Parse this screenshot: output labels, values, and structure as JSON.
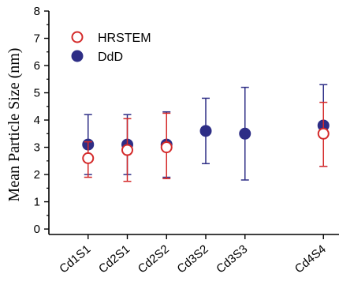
{
  "chart_data": {
    "type": "scatter",
    "title": "",
    "xlabel": "",
    "ylabel": "Mean Particle Size (nm)",
    "ylim": [
      -0.2,
      8
    ],
    "yticks": [
      0,
      1,
      2,
      3,
      4,
      5,
      6,
      7,
      8
    ],
    "categories": [
      "Cd1S1",
      "Cd2S1",
      "Cd2S2",
      "Cd3S2",
      "Cd3S3",
      "Cd4S4"
    ],
    "category_positions": [
      1,
      2,
      3,
      4,
      5,
      7
    ],
    "x_range": [
      0,
      8
    ],
    "grid": false,
    "legend_position": "top-left",
    "series": [
      {
        "name": "HRSTEM",
        "marker": "open-circle",
        "color": "#d42a2a",
        "values": [
          2.6,
          2.9,
          3.0,
          null,
          null,
          3.5
        ],
        "err_low": [
          1.9,
          1.75,
          1.85,
          null,
          null,
          2.3
        ],
        "err_high": [
          3.2,
          4.05,
          4.25,
          null,
          null,
          4.65
        ]
      },
      {
        "name": "DdD",
        "marker": "filled-circle",
        "color": "#2e2e86",
        "values": [
          3.1,
          3.1,
          3.1,
          3.6,
          3.5,
          3.8
        ],
        "err_low": [
          2.0,
          2.0,
          1.9,
          2.4,
          1.8,
          2.3
        ],
        "err_high": [
          4.2,
          4.2,
          4.3,
          4.8,
          5.2,
          5.3
        ]
      }
    ]
  }
}
